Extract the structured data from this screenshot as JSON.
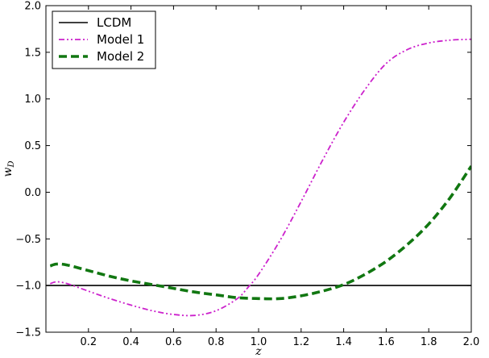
{
  "chart_data": {
    "type": "line",
    "xlabel": "z",
    "ylabel_main": "w",
    "ylabel_sub": "D",
    "xlim": [
      0.0,
      2.0
    ],
    "ylim": [
      -1.5,
      2.0
    ],
    "xticks": [
      0.2,
      0.4,
      0.6,
      0.8,
      1.0,
      1.2,
      1.4,
      1.6,
      1.8,
      2.0
    ],
    "xtick_labels": [
      "0.2",
      "0.4",
      "0.6",
      "0.8",
      "1.0",
      "1.2",
      "1.4",
      "1.6",
      "1.8",
      "2.0"
    ],
    "yticks": [
      -1.5,
      -1.0,
      -0.5,
      0.0,
      0.5,
      1.0,
      1.5,
      2.0
    ],
    "ytick_labels": [
      "−1.5",
      "−1.0",
      "−0.5",
      "0.0",
      "0.5",
      "1.0",
      "1.5",
      "2.0"
    ],
    "grid": false,
    "legend_position": "top-left",
    "series": [
      {
        "name": "LCDM",
        "color": "#000000",
        "style": "solid",
        "x": [
          0.0,
          2.0
        ],
        "y": [
          -1.0,
          -1.0
        ]
      },
      {
        "name": "Model 1",
        "color": "#cc22cc",
        "style": "dash-dot-dot",
        "x": [
          0.02,
          0.05,
          0.1,
          0.2,
          0.3,
          0.4,
          0.5,
          0.6,
          0.7,
          0.8,
          0.9,
          0.95,
          1.0,
          1.1,
          1.2,
          1.3,
          1.4,
          1.5,
          1.6,
          1.7,
          1.8,
          1.9,
          2.0
        ],
        "y": [
          -0.98,
          -0.96,
          -0.98,
          -1.06,
          -1.14,
          -1.21,
          -1.27,
          -1.31,
          -1.32,
          -1.27,
          -1.14,
          -1.02,
          -0.88,
          -0.52,
          -0.1,
          0.34,
          0.75,
          1.1,
          1.38,
          1.53,
          1.6,
          1.63,
          1.64
        ]
      },
      {
        "name": "Model 2",
        "color": "#117711",
        "style": "dashed",
        "x": [
          0.02,
          0.05,
          0.1,
          0.2,
          0.3,
          0.4,
          0.5,
          0.6,
          0.7,
          0.8,
          0.9,
          1.0,
          1.1,
          1.2,
          1.3,
          1.4,
          1.5,
          1.6,
          1.7,
          1.8,
          1.9,
          2.0
        ],
        "y": [
          -0.79,
          -0.77,
          -0.78,
          -0.84,
          -0.9,
          -0.95,
          -0.99,
          -1.03,
          -1.07,
          -1.1,
          -1.13,
          -1.14,
          -1.14,
          -1.11,
          -1.06,
          -0.99,
          -0.88,
          -0.74,
          -0.56,
          -0.34,
          -0.06,
          0.28
        ]
      }
    ]
  }
}
